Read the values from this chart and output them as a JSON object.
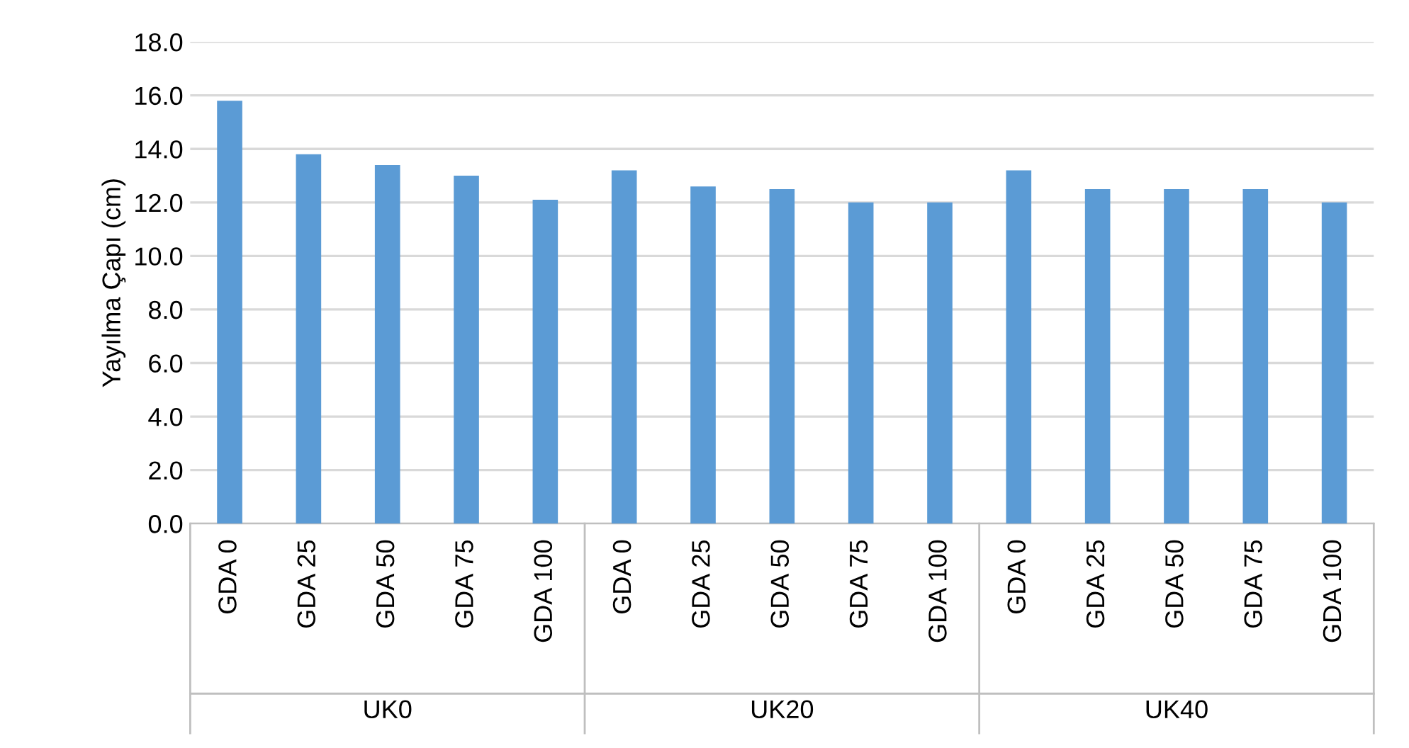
{
  "chart_data": {
    "type": "bar",
    "ylabel": "Yayılma Çapı (cm)",
    "categories": [
      "GDA 0",
      "GDA 25",
      "GDA 50",
      "GDA 75",
      "GDA 100",
      "GDA 0",
      "GDA 25",
      "GDA 50",
      "GDA 75",
      "GDA 100",
      "GDA 0",
      "GDA 25",
      "GDA 50",
      "GDA 75",
      "GDA 100"
    ],
    "values": [
      15.8,
      13.8,
      13.4,
      13.0,
      12.1,
      13.2,
      12.6,
      12.5,
      12.0,
      12.0,
      13.2,
      12.5,
      12.5,
      12.5,
      12.0
    ],
    "color": "#5b9bd5",
    "ylim": [
      0,
      18
    ],
    "yticks": [
      {
        "value": 0,
        "label": "0.0"
      },
      {
        "value": 2,
        "label": "2.0"
      },
      {
        "value": 4,
        "label": "4.0"
      },
      {
        "value": 6,
        "label": "6.0"
      },
      {
        "value": 8,
        "label": "8.0"
      },
      {
        "value": 10,
        "label": "10.0"
      },
      {
        "value": 12,
        "label": "12.0"
      },
      {
        "value": 14,
        "label": "14.0"
      },
      {
        "value": 16,
        "label": "16.0"
      },
      {
        "value": 18,
        "label": "18.0"
      }
    ],
    "grid": "y",
    "annotations": [
      "UK0",
      "UK20",
      "UK40"
    ]
  }
}
